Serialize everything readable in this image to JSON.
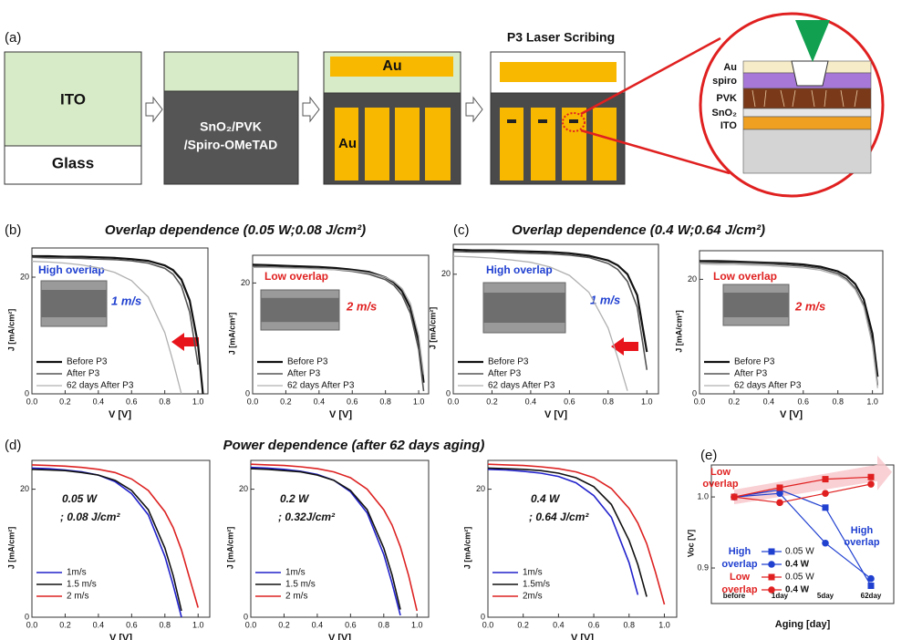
{
  "panel_labels": [
    "(a)",
    "(b)",
    "(c)",
    "(d)",
    "(e)"
  ],
  "headings": [
    "Overlap dependence (0.05 W;0.08 J/cm²)",
    "Overlap dependence (0.4 W;0.64 J/cm²)",
    "Power dependence (after 62 days aging)"
  ],
  "diagram": {
    "p3_title": "P3 Laser Scribing",
    "ito": "ITO",
    "glass": "Glass",
    "stack": [
      "SnO₂/PVK",
      "/Spiro-OMeTAD"
    ],
    "au_top": "Au",
    "au_strip": "Au",
    "layers": [
      "Au",
      "spiro",
      "PVK",
      "SnO₂",
      "ITO"
    ]
  },
  "chart_data": [
    {
      "type": "line",
      "x": [
        0,
        0.1,
        0.2,
        0.3,
        0.4,
        0.5,
        0.6,
        0.7,
        0.8,
        0.85,
        0.9,
        0.95,
        1.0,
        1.03,
        1.06
      ],
      "xlim": [
        0,
        1.06
      ],
      "xticks": [
        {
          "value": 0,
          "label": "0.0"
        },
        0.2,
        0.4,
        0.6,
        0.8,
        {
          "value": 1,
          "label": "1.0"
        }
      ],
      "ylim": [
        0,
        25
      ],
      "yticks": [
        0,
        20
      ],
      "xlabel": "V [V]",
      "ylabel": "J [mA/cm²]",
      "legend": "lower left",
      "series": [
        {
          "name": "Before P3",
          "color": "#111111",
          "values": [
            23.6,
            23.6,
            23.5,
            23.5,
            23.4,
            23.3,
            23.1,
            22.8,
            22.0,
            21.2,
            19.6,
            16,
            8.5,
            0,
            null
          ]
        },
        {
          "name": "After P3",
          "color": "#555555",
          "values": [
            23.4,
            23.3,
            23.3,
            23.2,
            23.1,
            23.0,
            22.8,
            22.4,
            21.5,
            20.5,
            18.5,
            14,
            5,
            null,
            null
          ]
        },
        {
          "name": "62 days After P3",
          "color": "#b0b0b0",
          "values": [
            22.7,
            22.6,
            22.4,
            22.1,
            21.6,
            20.8,
            19.4,
            16.6,
            10.5,
            5.5,
            0,
            null,
            null,
            null,
            null
          ]
        }
      ],
      "annotations": [
        {
          "text": "High overlap",
          "color": "#2040d0"
        },
        {
          "text": "1 m/s",
          "color": "#2040d0"
        }
      ]
    },
    {
      "type": "line",
      "x": [
        0,
        0.1,
        0.2,
        0.3,
        0.4,
        0.5,
        0.6,
        0.7,
        0.8,
        0.85,
        0.9,
        0.95,
        1.0,
        1.03,
        1.06
      ],
      "xlim": [
        0,
        1.06
      ],
      "xticks": [
        {
          "value": 0,
          "label": "0.0"
        },
        0.2,
        0.4,
        0.6,
        0.8,
        {
          "value": 1,
          "label": "1.0"
        }
      ],
      "ylim": [
        0,
        25
      ],
      "yticks": [
        0,
        20
      ],
      "xlabel": "V [V]",
      "ylabel": "J [mA/cm²]",
      "legend": "lower left",
      "series": [
        {
          "name": "Before P3",
          "color": "#111111",
          "values": [
            23.3,
            23.2,
            23.1,
            23.0,
            22.9,
            22.7,
            22.4,
            22.0,
            21.0,
            20.1,
            18.5,
            15.5,
            9.5,
            2,
            null
          ]
        },
        {
          "name": "After P3",
          "color": "#555555",
          "values": [
            23.0,
            22.9,
            22.8,
            22.7,
            22.6,
            22.4,
            22.1,
            21.6,
            20.6,
            19.6,
            17.8,
            14.5,
            8,
            0.5,
            null
          ]
        },
        {
          "name": "62 days After P3",
          "color": "#b0b0b0",
          "values": [
            22.8,
            22.8,
            22.7,
            22.6,
            22.5,
            22.4,
            22.2,
            21.8,
            21.0,
            20.3,
            19.0,
            16.3,
            10.5,
            3.5,
            null
          ]
        }
      ],
      "annotations": [
        {
          "text": "Low overlap",
          "color": "#e02020"
        },
        {
          "text": "2 m/s",
          "color": "#e02020"
        }
      ]
    },
    {
      "type": "line",
      "x": [
        0,
        0.1,
        0.2,
        0.3,
        0.4,
        0.5,
        0.6,
        0.7,
        0.8,
        0.85,
        0.9,
        0.95,
        1.0,
        1.03,
        1.06
      ],
      "xlim": [
        0,
        1.06
      ],
      "xticks": [
        {
          "value": 0,
          "label": "0.0"
        },
        0.2,
        0.4,
        0.6,
        0.8,
        {
          "value": 1,
          "label": "1.0"
        }
      ],
      "ylim": [
        0,
        25
      ],
      "yticks": [
        0,
        20
      ],
      "xlabel": "V [V]",
      "ylabel": "J [mA/cm²]",
      "legend": "lower left",
      "series": [
        {
          "name": "Before P3",
          "color": "#111111",
          "values": [
            24.1,
            24.0,
            24.0,
            23.9,
            23.8,
            23.7,
            23.5,
            23.1,
            22.3,
            21.5,
            20,
            16.5,
            7,
            null,
            null
          ]
        },
        {
          "name": "After P3",
          "color": "#555555",
          "values": [
            23.8,
            23.7,
            23.7,
            23.6,
            23.5,
            23.4,
            23.2,
            22.8,
            21.8,
            20.8,
            18.8,
            14.5,
            4,
            null,
            null
          ]
        },
        {
          "name": "62 days After P3",
          "color": "#b0b0b0",
          "values": [
            23.0,
            22.9,
            22.7,
            22.4,
            22.0,
            21.2,
            19.8,
            17,
            11,
            6,
            0.5,
            null,
            null,
            null,
            null
          ]
        }
      ],
      "annotations": [
        {
          "text": "High overlap",
          "color": "#2040d0"
        },
        {
          "text": "1 m/s",
          "color": "#2040d0"
        }
      ]
    },
    {
      "type": "line",
      "x": [
        0,
        0.1,
        0.2,
        0.3,
        0.4,
        0.5,
        0.6,
        0.7,
        0.8,
        0.85,
        0.9,
        0.95,
        1.0,
        1.03,
        1.06
      ],
      "xlim": [
        0,
        1.06
      ],
      "xticks": [
        {
          "value": 0,
          "label": "0.0"
        },
        0.2,
        0.4,
        0.6,
        0.8,
        {
          "value": 1,
          "label": "1.0"
        }
      ],
      "ylim": [
        0,
        25
      ],
      "yticks": [
        0,
        20
      ],
      "xlabel": "V [V]",
      "ylabel": "J [mA/cm²]",
      "legend": "lower left",
      "series": [
        {
          "name": "Before P3",
          "color": "#111111",
          "values": [
            23.2,
            23.2,
            23.1,
            23.0,
            22.9,
            22.8,
            22.6,
            22.2,
            21.4,
            20.6,
            19.2,
            16.5,
            10.5,
            3,
            null
          ]
        },
        {
          "name": "After P3",
          "color": "#555555",
          "values": [
            23.0,
            22.9,
            22.9,
            22.8,
            22.7,
            22.5,
            22.3,
            21.9,
            21.0,
            20.1,
            18.5,
            15.5,
            9,
            1.5,
            null
          ]
        },
        {
          "name": "62 days After P3",
          "color": "#b0b0b0",
          "values": [
            22.7,
            22.6,
            22.6,
            22.5,
            22.4,
            22.2,
            22.0,
            21.6,
            20.7,
            19.8,
            18.2,
            15.2,
            8.5,
            1,
            null
          ]
        }
      ],
      "annotations": [
        {
          "text": "Low overlap",
          "color": "#e02020"
        },
        {
          "text": "2 m/s",
          "color": "#e02020"
        }
      ]
    },
    {
      "type": "line",
      "x": [
        0,
        0.1,
        0.2,
        0.3,
        0.4,
        0.5,
        0.6,
        0.7,
        0.8,
        0.85,
        0.9,
        0.95,
        1.0,
        1.03,
        1.06
      ],
      "xlim": [
        0,
        1.07
      ],
      "xticks": [
        {
          "value": 0,
          "label": "0.0"
        },
        0.2,
        0.4,
        0.6,
        0.8,
        {
          "value": 1,
          "label": "1.0"
        }
      ],
      "ylim": [
        0,
        24.5
      ],
      "yticks": [
        0,
        20
      ],
      "xlabel": "V [V]",
      "ylabel": "J [mA/cm²]",
      "legend": "lower left",
      "series": [
        {
          "name": "1m/s",
          "color": "#2222cc",
          "values": [
            23.3,
            23.2,
            23.0,
            22.7,
            22.2,
            21.2,
            19.3,
            16.0,
            9.5,
            5.0,
            0,
            null,
            null,
            null,
            null
          ]
        },
        {
          "name": "1.5 m/s",
          "color": "#111111",
          "values": [
            23.1,
            23.0,
            22.9,
            22.6,
            22.2,
            21.4,
            19.8,
            16.8,
            10.8,
            6.5,
            1.0,
            null,
            null,
            null,
            null
          ]
        },
        {
          "name": "2 m/s",
          "color": "#dd2222",
          "values": [
            23.8,
            23.7,
            23.6,
            23.4,
            23.1,
            22.6,
            21.6,
            19.8,
            16.5,
            14.0,
            10.5,
            6.0,
            1.5,
            null,
            null
          ]
        }
      ],
      "annotations": [
        {
          "text": "0.05 W",
          "color": "#111111"
        },
        {
          "text": "; 0.08 J/cm²",
          "color": "#111111"
        }
      ]
    },
    {
      "type": "line",
      "x": [
        0,
        0.1,
        0.2,
        0.3,
        0.4,
        0.5,
        0.6,
        0.7,
        0.8,
        0.85,
        0.9,
        0.95,
        1.0,
        1.03,
        1.06
      ],
      "xlim": [
        0,
        1.07
      ],
      "xticks": [
        {
          "value": 0,
          "label": "0.0"
        },
        0.2,
        0.4,
        0.6,
        0.8,
        {
          "value": 1,
          "label": "1.0"
        }
      ],
      "ylim": [
        0,
        24.5
      ],
      "yticks": [
        0,
        20
      ],
      "xlabel": "V [V]",
      "ylabel": "J [mA/cm²]",
      "legend": "lower left",
      "series": [
        {
          "name": "1m/s",
          "color": "#2222cc",
          "values": [
            23.4,
            23.3,
            23.1,
            22.8,
            22.3,
            21.4,
            19.6,
            16.3,
            9.8,
            5.3,
            0.3,
            null,
            null,
            null,
            null
          ]
        },
        {
          "name": "1.5 m/s",
          "color": "#111111",
          "values": [
            23.2,
            23.1,
            22.9,
            22.7,
            22.2,
            21.4,
            19.8,
            16.8,
            10.8,
            6.6,
            1.2,
            null,
            null,
            null,
            null
          ]
        },
        {
          "name": "2 m/s",
          "color": "#dd2222",
          "values": [
            23.9,
            23.8,
            23.7,
            23.5,
            23.2,
            22.7,
            21.8,
            20.0,
            16.8,
            14.4,
            11.0,
            6.5,
            1.0,
            null,
            null
          ]
        }
      ],
      "annotations": [
        {
          "text": "0.2 W",
          "color": "#111111"
        },
        {
          "text": "; 0.32J/cm²",
          "color": "#111111"
        }
      ]
    },
    {
      "type": "line",
      "x": [
        0,
        0.1,
        0.2,
        0.3,
        0.4,
        0.5,
        0.6,
        0.7,
        0.8,
        0.85,
        0.9,
        0.95,
        1.0,
        1.03,
        1.06
      ],
      "xlim": [
        0,
        1.07
      ],
      "xticks": [
        {
          "value": 0,
          "label": "0.0"
        },
        0.2,
        0.4,
        0.6,
        0.8,
        {
          "value": 1,
          "label": "1.0"
        }
      ],
      "ylim": [
        0,
        24.5
      ],
      "yticks": [
        0,
        20
      ],
      "xlabel": "V [V]",
      "ylabel": "J [mA/cm²]",
      "legend": "lower left",
      "series": [
        {
          "name": "1m/s",
          "color": "#2222cc",
          "values": [
            23.1,
            23.0,
            22.8,
            22.5,
            22.0,
            21.0,
            19.0,
            15.6,
            8.5,
            3.5,
            null,
            null,
            null,
            null,
            null
          ]
        },
        {
          "name": "1.5m/s",
          "color": "#111111",
          "values": [
            23.3,
            23.2,
            23.1,
            22.9,
            22.5,
            21.8,
            20.4,
            17.6,
            12,
            8.2,
            3.2,
            null,
            null,
            null,
            null
          ]
        },
        {
          "name": "2m/s",
          "color": "#dd2222",
          "values": [
            23.9,
            23.8,
            23.7,
            23.5,
            23.2,
            22.7,
            21.8,
            20.1,
            17,
            14.7,
            11.5,
            7,
            2,
            null,
            null
          ]
        }
      ],
      "annotations": [
        {
          "text": "0.4 W",
          "color": "#111111"
        },
        {
          "text": "; 0.64 J/cm²",
          "color": "#111111"
        }
      ]
    },
    {
      "type": "dotline",
      "categories": [
        "before",
        "1day",
        "5day",
        "62day"
      ],
      "ylim": [
        0.85,
        1.045
      ],
      "yticks": [
        0.9,
        {
          "value": 1,
          "label": "1.0"
        }
      ],
      "xlabel": "Aging [day]",
      "ylabel": "Voc [V]",
      "series": [
        {
          "name": "0.05 W",
          "color": "#2040d0",
          "marker": "square",
          "values": [
            1,
            1.01,
            0.985,
            0.875
          ]
        },
        {
          "name": "0.4 W",
          "color": "#2040d0",
          "marker": "circle",
          "values": [
            1,
            1.005,
            0.935,
            0.885
          ]
        },
        {
          "name": "0.05 W",
          "color": "#e02020",
          "marker": "square",
          "values": [
            1,
            1.013,
            1.025,
            1.028
          ]
        },
        {
          "name": "0.4 W",
          "color": "#e02020",
          "marker": "circle",
          "values": [
            1,
            0.992,
            1.005,
            1.018
          ]
        }
      ],
      "legend_groups": [
        {
          "lines": [
            "High",
            "overlap"
          ],
          "color": "#2040d0"
        },
        {
          "lines": [
            "Low",
            "overlap"
          ],
          "color": "#e02020"
        }
      ],
      "annotations": [
        {
          "lines": [
            "Low",
            "overlap"
          ],
          "color": "#e02020"
        },
        {
          "lines": [
            "High",
            "overlap"
          ],
          "color": "#2040d0"
        }
      ]
    }
  ]
}
